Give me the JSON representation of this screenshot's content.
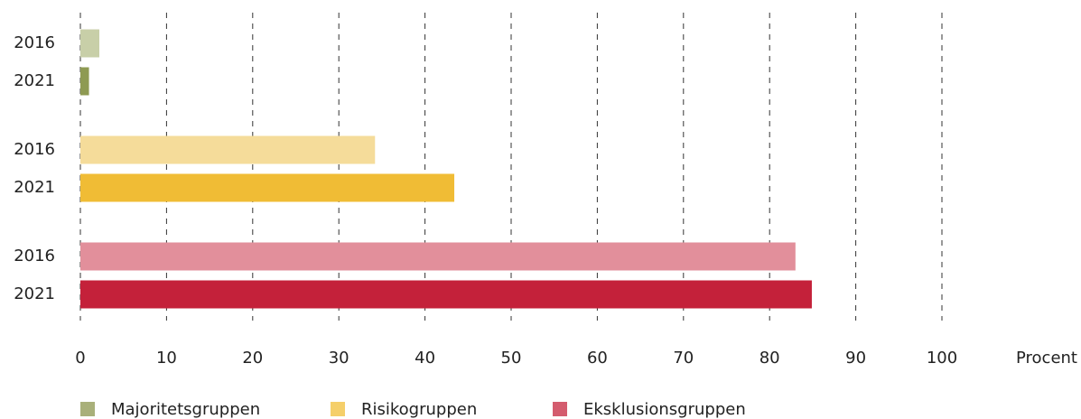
{
  "chart_data": {
    "type": "grouped-hbar",
    "categories": [
      "2016",
      "2021"
    ],
    "series": [
      {
        "name": "Majoritetsgruppen",
        "color": "#a9b07a",
        "bar_colors": [
          "#c8cfa8",
          "#8e9a52"
        ],
        "values": [
          2.2,
          1.0
        ]
      },
      {
        "name": "Risikogruppen",
        "color": "#f5cf6a",
        "bar_colors": [
          "#f5dc9a",
          "#f0bc35"
        ],
        "values": [
          34.2,
          43.4
        ]
      },
      {
        "name": "Eksklusionsgruppen",
        "color": "#d45c6e",
        "bar_colors": [
          "#e28f9b",
          "#c4213a"
        ],
        "values": [
          83.0,
          84.9
        ]
      }
    ],
    "xlabel": "Procent",
    "xlim": [
      0,
      100
    ],
    "xticks": [
      0,
      10,
      20,
      30,
      40,
      50,
      60,
      70,
      80,
      90,
      100
    ],
    "grid": true
  }
}
